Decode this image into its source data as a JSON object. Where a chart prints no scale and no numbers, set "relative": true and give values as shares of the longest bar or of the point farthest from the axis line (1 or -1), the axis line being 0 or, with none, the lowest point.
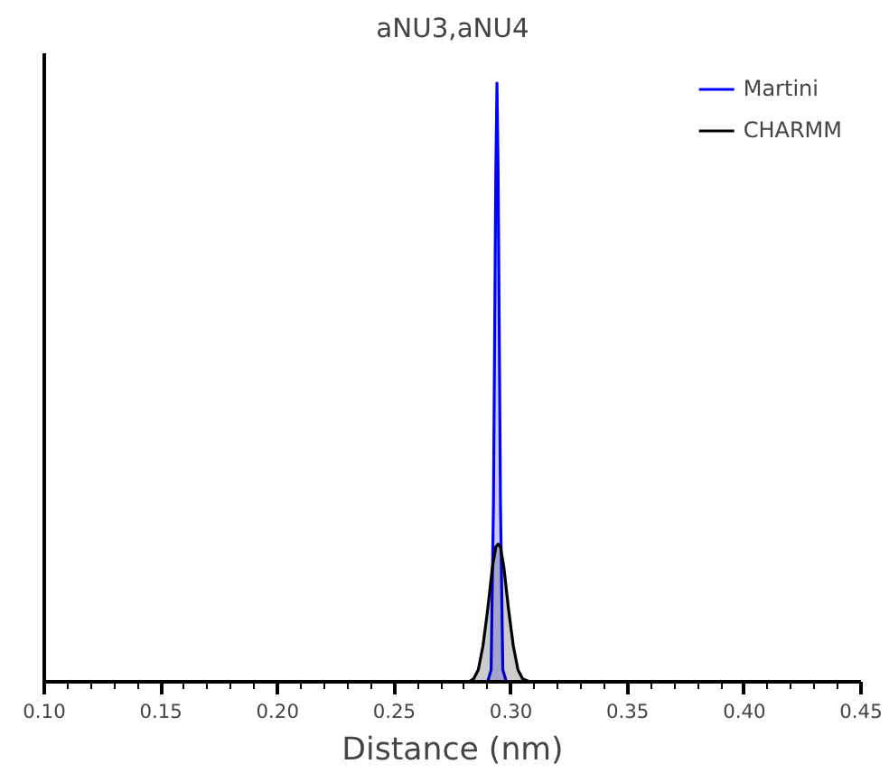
{
  "chart_data": {
    "type": "area",
    "title": "aNU3,aNU4",
    "xlabel": "Distance (nm)",
    "relative": true,
    "xlim": [
      0.1,
      0.45
    ],
    "xticks": [
      {
        "value": 0.1,
        "label": "0.10"
      },
      {
        "value": 0.15,
        "label": "0.15"
      },
      {
        "value": 0.2,
        "label": "0.20"
      },
      {
        "value": 0.25,
        "label": "0.25"
      },
      {
        "value": 0.3,
        "label": "0.30"
      },
      {
        "value": 0.35,
        "label": "0.35"
      },
      {
        "value": 0.4,
        "label": "0.40"
      },
      {
        "value": 0.45,
        "label": "0.45"
      }
    ],
    "legend": "top right",
    "grid": false,
    "series": [
      {
        "name": "Martini",
        "color": "#0000ff",
        "x": [
          0.1,
          0.29,
          0.2915,
          0.2925,
          0.2935,
          0.294,
          0.2945,
          0.2955,
          0.2965,
          0.298,
          0.45
        ],
        "values": [
          0,
          0,
          0.02,
          0.3,
          0.85,
          1,
          0.85,
          0.3,
          0.02,
          0,
          0
        ]
      },
      {
        "name": "CHARMM",
        "color": "#000000",
        "x": [
          0.1,
          0.282,
          0.284,
          0.286,
          0.288,
          0.29,
          0.292,
          0.2935,
          0.2945,
          0.2955,
          0.297,
          0.299,
          0.301,
          0.303,
          0.305,
          0.308,
          0.45
        ],
        "values": [
          0,
          0,
          0.005,
          0.02,
          0.06,
          0.12,
          0.19,
          0.225,
          0.23,
          0.225,
          0.19,
          0.12,
          0.06,
          0.02,
          0.005,
          0,
          0
        ]
      }
    ]
  }
}
